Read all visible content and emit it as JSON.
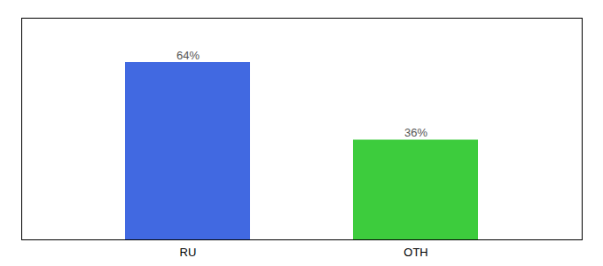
{
  "chart_data": {
    "type": "bar",
    "categories": [
      "RU",
      "OTH"
    ],
    "values": [
      64,
      36
    ],
    "colors": [
      "#4169e1",
      "#3dcc3d"
    ],
    "value_labels": [
      "64%",
      "36%"
    ],
    "data_labels": true,
    "ylim": [
      0,
      80
    ],
    "tick_labels": "x",
    "grid": false
  }
}
